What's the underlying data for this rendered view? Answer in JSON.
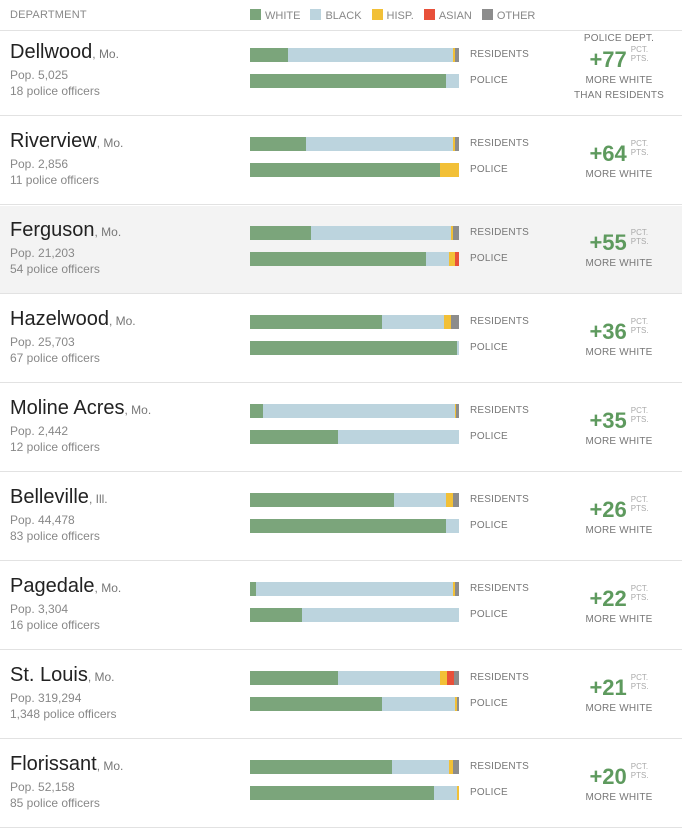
{
  "header": {
    "department_label": "DEPARTMENT",
    "legend": [
      {
        "label": "WHITE",
        "color": "#7ba57b"
      },
      {
        "label": "BLACK",
        "color": "#bcd4de"
      },
      {
        "label": "HISP.",
        "color": "#f2c037"
      },
      {
        "label": "ASIAN",
        "color": "#e8503a"
      },
      {
        "label": "OTHER",
        "color": "#8c8c8c"
      }
    ]
  },
  "labels": {
    "residents": "RESIDENTS",
    "police": "POLICE",
    "pct": "PCT.",
    "pts": "PTS.",
    "more_white": "MORE WHITE",
    "police_dept_top": "POLICE DEPT.",
    "than_residents": "THAN RESIDENTS"
  },
  "chart_data": {
    "type": "bar",
    "stacked": true,
    "orientation": "horizontal",
    "series_names": [
      "White",
      "Black",
      "Hisp.",
      "Asian",
      "Other"
    ],
    "rows": [
      {
        "city": "Dellwood",
        "state": "Mo.",
        "population": "Pop. 5,025",
        "officers": "18 police officers",
        "residents": [
          18,
          79,
          1,
          0,
          2
        ],
        "police": [
          94,
          6,
          0,
          0,
          0
        ],
        "difference": "+77",
        "highlight": false
      },
      {
        "city": "Riverview",
        "state": "Mo.",
        "population": "Pop. 2,856",
        "officers": "11 police officers",
        "residents": [
          27,
          70,
          1,
          0,
          2
        ],
        "police": [
          91,
          0,
          9,
          0,
          0
        ],
        "difference": "+64",
        "highlight": false
      },
      {
        "city": "Ferguson",
        "state": "Mo.",
        "population": "Pop. 21,203",
        "officers": "54 police officers",
        "residents": [
          29,
          67,
          1,
          0,
          3
        ],
        "police": [
          84,
          11,
          3,
          2,
          0
        ],
        "difference": "+55",
        "highlight": true
      },
      {
        "city": "Hazelwood",
        "state": "Mo.",
        "population": "Pop. 25,703",
        "officers": "67 police officers",
        "residents": [
          63,
          30,
          3,
          0,
          4
        ],
        "police": [
          99,
          1,
          0,
          0,
          0
        ],
        "difference": "+36",
        "highlight": false
      },
      {
        "city": "Moline Acres",
        "state": "Mo.",
        "population": "Pop. 2,442",
        "officers": "12 police officers",
        "residents": [
          6,
          92,
          0.5,
          0,
          1.5
        ],
        "police": [
          42,
          58,
          0,
          0,
          0
        ],
        "difference": "+35",
        "highlight": false
      },
      {
        "city": "Belleville",
        "state": "Ill.",
        "population": "Pop. 44,478",
        "officers": "83 police officers",
        "residents": [
          69,
          25,
          3,
          0,
          3
        ],
        "police": [
          94,
          6,
          0,
          0,
          0
        ],
        "difference": "+26",
        "highlight": false
      },
      {
        "city": "Pagedale",
        "state": "Mo.",
        "population": "Pop. 3,304",
        "officers": "16 police officers",
        "residents": [
          3,
          94,
          1,
          0,
          2
        ],
        "police": [
          25,
          75,
          0,
          0,
          0
        ],
        "difference": "+22",
        "highlight": false
      },
      {
        "city": "St. Louis",
        "state": "Mo.",
        "population": "Pop. 319,294",
        "officers": "1,348 police officers",
        "residents": [
          42,
          49,
          3.5,
          3,
          2.5
        ],
        "police": [
          63,
          35,
          1,
          0,
          1
        ],
        "difference": "+21",
        "highlight": false
      },
      {
        "city": "Florissant",
        "state": "Mo.",
        "population": "Pop. 52,158",
        "officers": "85 police officers",
        "residents": [
          68,
          27,
          2,
          0,
          3
        ],
        "police": [
          88,
          11,
          1,
          0,
          0
        ],
        "difference": "+20",
        "highlight": false
      }
    ]
  }
}
